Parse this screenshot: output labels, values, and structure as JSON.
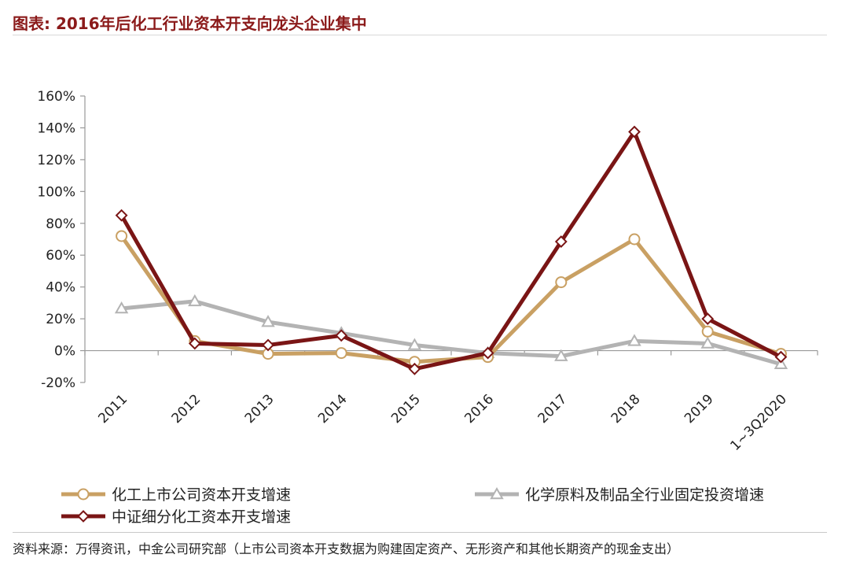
{
  "header": {
    "title": "图表: 2016年后化工行业资本开支向龙头企业集中"
  },
  "chart_data": {
    "type": "line",
    "title": "图表: 2016年后化工行业资本开支向龙头企业集中",
    "xlabel": "",
    "ylabel": "",
    "ylim": [
      -20,
      160
    ],
    "y_ticks": [
      "160%",
      "140%",
      "120%",
      "100%",
      "80%",
      "60%",
      "40%",
      "20%",
      "0%",
      "-20%"
    ],
    "y_tick_values": [
      160,
      140,
      120,
      100,
      80,
      60,
      40,
      20,
      0,
      -20
    ],
    "categories": [
      "2011",
      "2012",
      "2013",
      "2014",
      "2015",
      "2016",
      "2017",
      "2018",
      "2019",
      "1~3Q2020"
    ],
    "grid": false,
    "legend_position": "bottom",
    "series": [
      {
        "name": "化工上市公司资本开支增速",
        "color": "#c9a063",
        "marker": "circle",
        "values": [
          72,
          6,
          -2,
          -1.5,
          -7,
          -4,
          43,
          70,
          12,
          -2
        ]
      },
      {
        "name": "化学原料及制品全行业固定投资增速",
        "color": "#b3b3b3",
        "marker": "triangle",
        "values": [
          26.5,
          31,
          18,
          11,
          3.5,
          -1.5,
          -3.5,
          6,
          4.5,
          -8.5
        ]
      },
      {
        "name": "中证细分化工资本开支增速",
        "color": "#7a1515",
        "marker": "diamond",
        "values": [
          85,
          4.5,
          3.5,
          9.5,
          -11.5,
          -1.5,
          68.5,
          137.5,
          20,
          -4
        ]
      }
    ]
  },
  "footer": {
    "source": "资料来源：万得资讯，中金公司研究部（上市公司资本开支数据为购建固定资产、无形资产和其他长期资产的现金支出）"
  }
}
